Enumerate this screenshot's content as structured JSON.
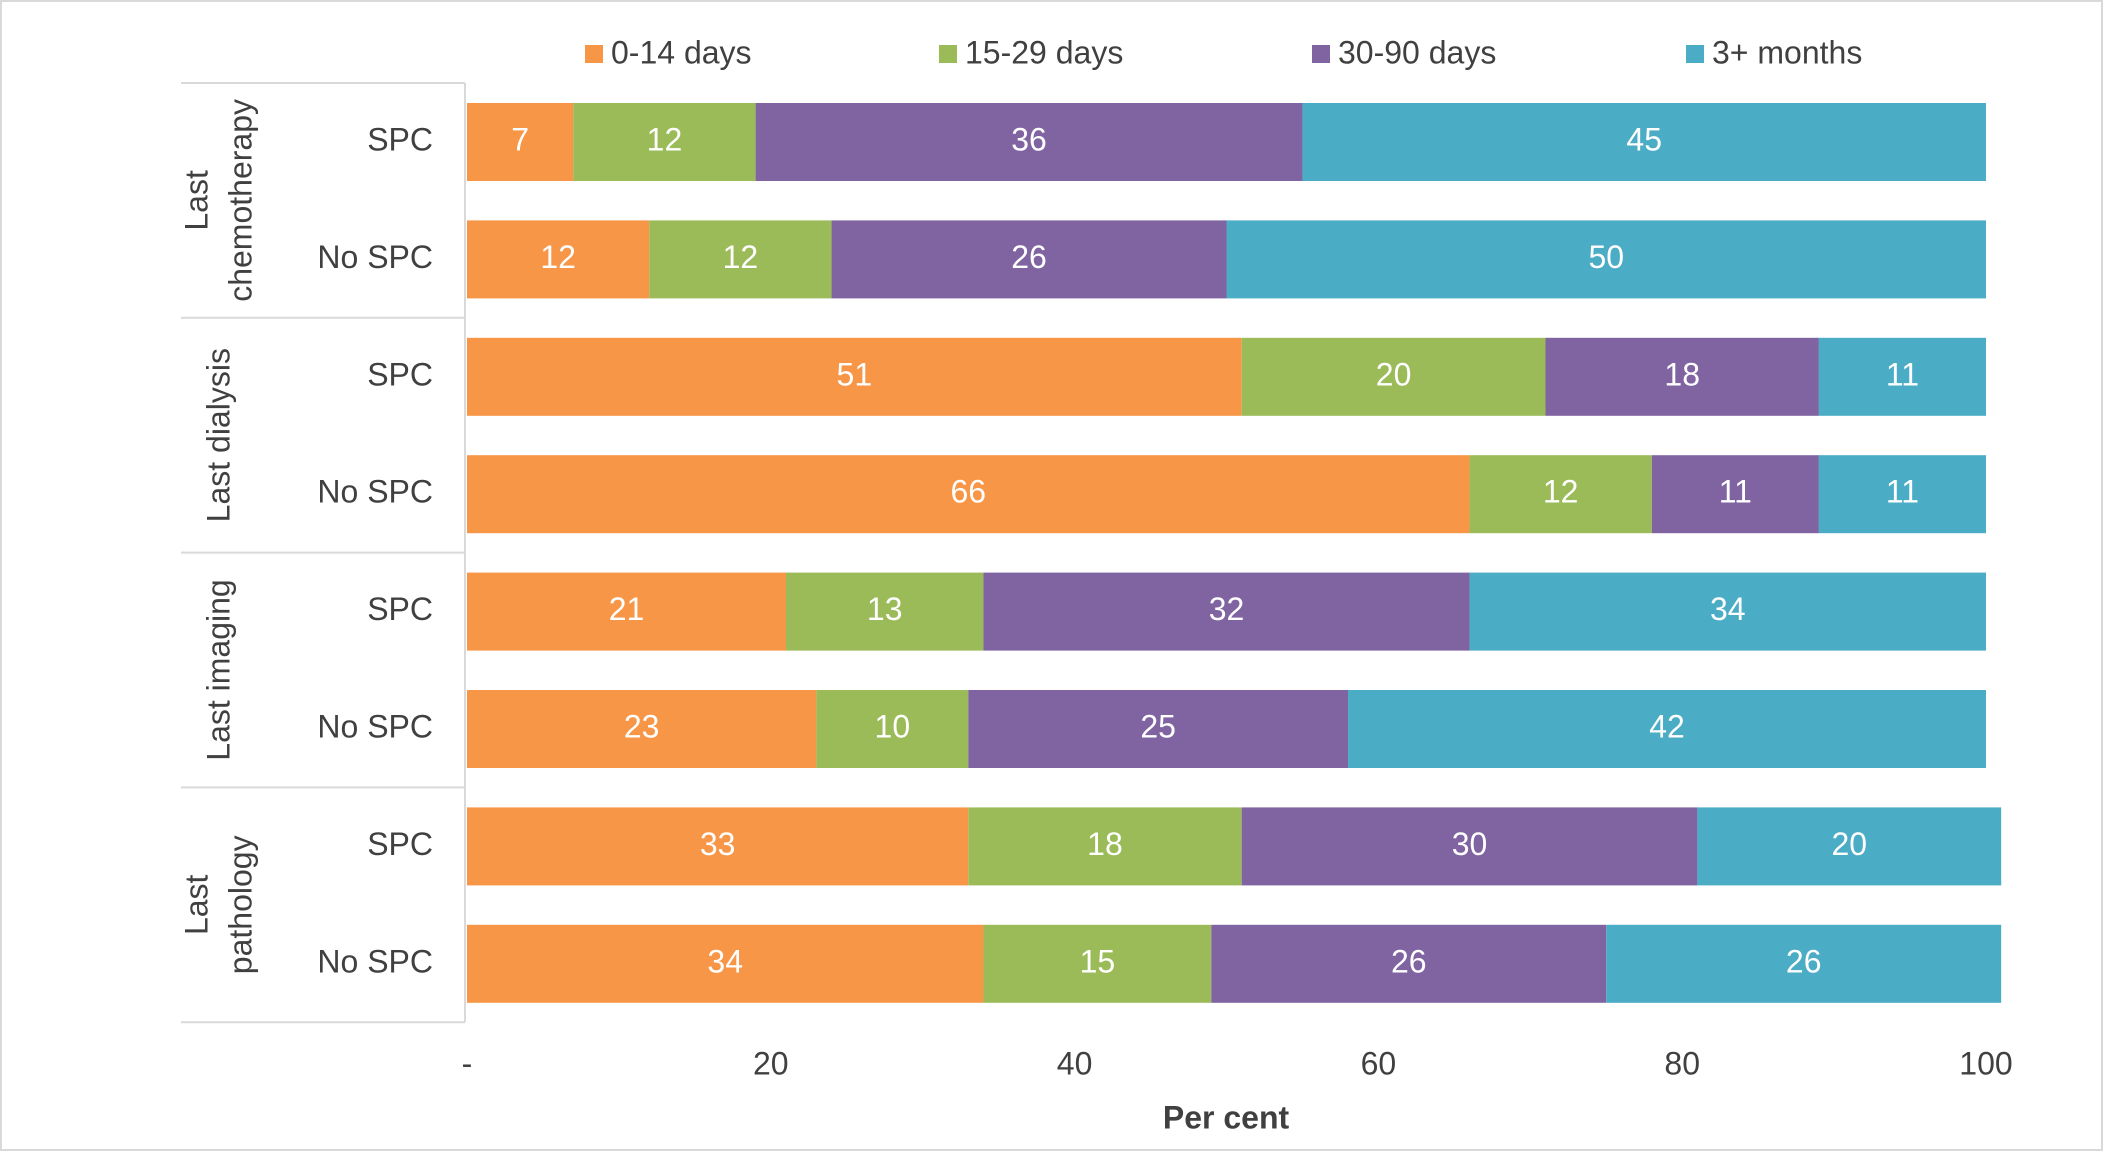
{
  "chart_data": {
    "type": "stacked_barh",
    "legend": "top",
    "categories": [
      "SPC",
      "No SPC",
      "SPC",
      "No SPC",
      "SPC",
      "No SPC",
      "SPC",
      "No SPC"
    ],
    "groups": [
      {
        "lines": [
          "Last",
          "chemotherapy"
        ]
      },
      {
        "lines": [
          "Last dialysis"
        ]
      },
      {
        "lines": [
          "Last imaging"
        ]
      },
      {
        "lines": [
          "Last",
          "pathology"
        ]
      }
    ],
    "series": [
      {
        "name": "0-14 days",
        "color": "#f79646",
        "values": [
          7,
          12,
          51,
          66,
          21,
          23,
          33,
          34
        ]
      },
      {
        "name": "15-29 days",
        "color": "#9bbb59",
        "values": [
          12,
          12,
          20,
          12,
          13,
          10,
          18,
          15
        ]
      },
      {
        "name": "30-90 days",
        "color": "#8064a2",
        "values": [
          36,
          26,
          18,
          11,
          32,
          25,
          30,
          26
        ]
      },
      {
        "name": "3+ months",
        "color": "#4bacc6",
        "values": [
          45,
          50,
          11,
          11,
          34,
          42,
          20,
          26
        ]
      }
    ],
    "xlabel": "Per cent",
    "xlim": [
      0,
      100
    ],
    "xticks": [
      {
        "value": 0,
        "label": "-"
      },
      20,
      40,
      60,
      80,
      100
    ]
  }
}
